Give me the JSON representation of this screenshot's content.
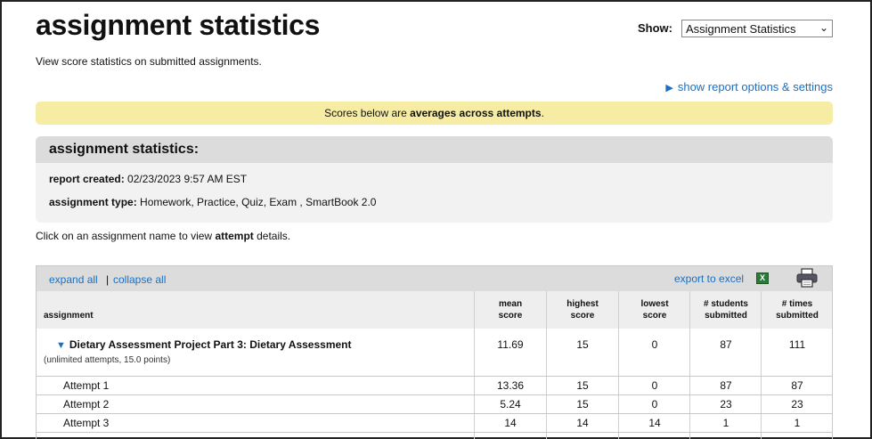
{
  "page": {
    "title": "assignment statistics",
    "subtitle": "View score statistics on submitted assignments.",
    "show_label": "Show:",
    "show_value": "Assignment Statistics",
    "options_link": "show report options & settings",
    "notice_prefix": "Scores below are ",
    "notice_bold": "averages across attempts",
    "notice_suffix": "."
  },
  "stats": {
    "heading": "assignment statistics:",
    "report_created_label": "report created:",
    "report_created_value": "02/23/2023 9:57 AM EST",
    "assignment_type_label": "assignment type:",
    "assignment_type_value": "Homework, Practice, Quiz, Exam , SmartBook 2.0"
  },
  "click_note": {
    "prefix": "Click on an assignment name to view ",
    "bold": "attempt",
    "suffix": " details."
  },
  "toolbar": {
    "expand_all": "expand all",
    "separator": "|",
    "collapse_all": "collapse all",
    "export_excel": "export to excel",
    "excel_glyph": "X"
  },
  "table": {
    "headers": {
      "assignment": "assignment",
      "mean_1": "mean",
      "mean_2": "score",
      "highest_1": "highest",
      "highest_2": "score",
      "lowest_1": "lowest",
      "lowest_2": "score",
      "students_1": "# students",
      "students_2": "submitted",
      "times_1": "# times",
      "times_2": "submitted"
    },
    "assignment": {
      "name": "Dietary Assessment Project Part 3: Dietary Assessment",
      "meta": "(unlimited attempts, 15.0 points)",
      "mean": "11.69",
      "highest": "15",
      "lowest": "0",
      "students": "87",
      "times": "111"
    },
    "attempts": [
      {
        "label": "Attempt 1",
        "mean": "13.36",
        "highest": "15",
        "lowest": "0",
        "students": "87",
        "times": "87"
      },
      {
        "label": "Attempt 2",
        "mean": "5.24",
        "highest": "15",
        "lowest": "0",
        "students": "23",
        "times": "23"
      },
      {
        "label": "Attempt 3",
        "mean": "14",
        "highest": "14",
        "lowest": "14",
        "students": "1",
        "times": "1"
      }
    ]
  },
  "colors": {
    "link": "#1a6fc4",
    "notice_bg": "#f6eca4",
    "header_bg": "#dcdcdc"
  }
}
